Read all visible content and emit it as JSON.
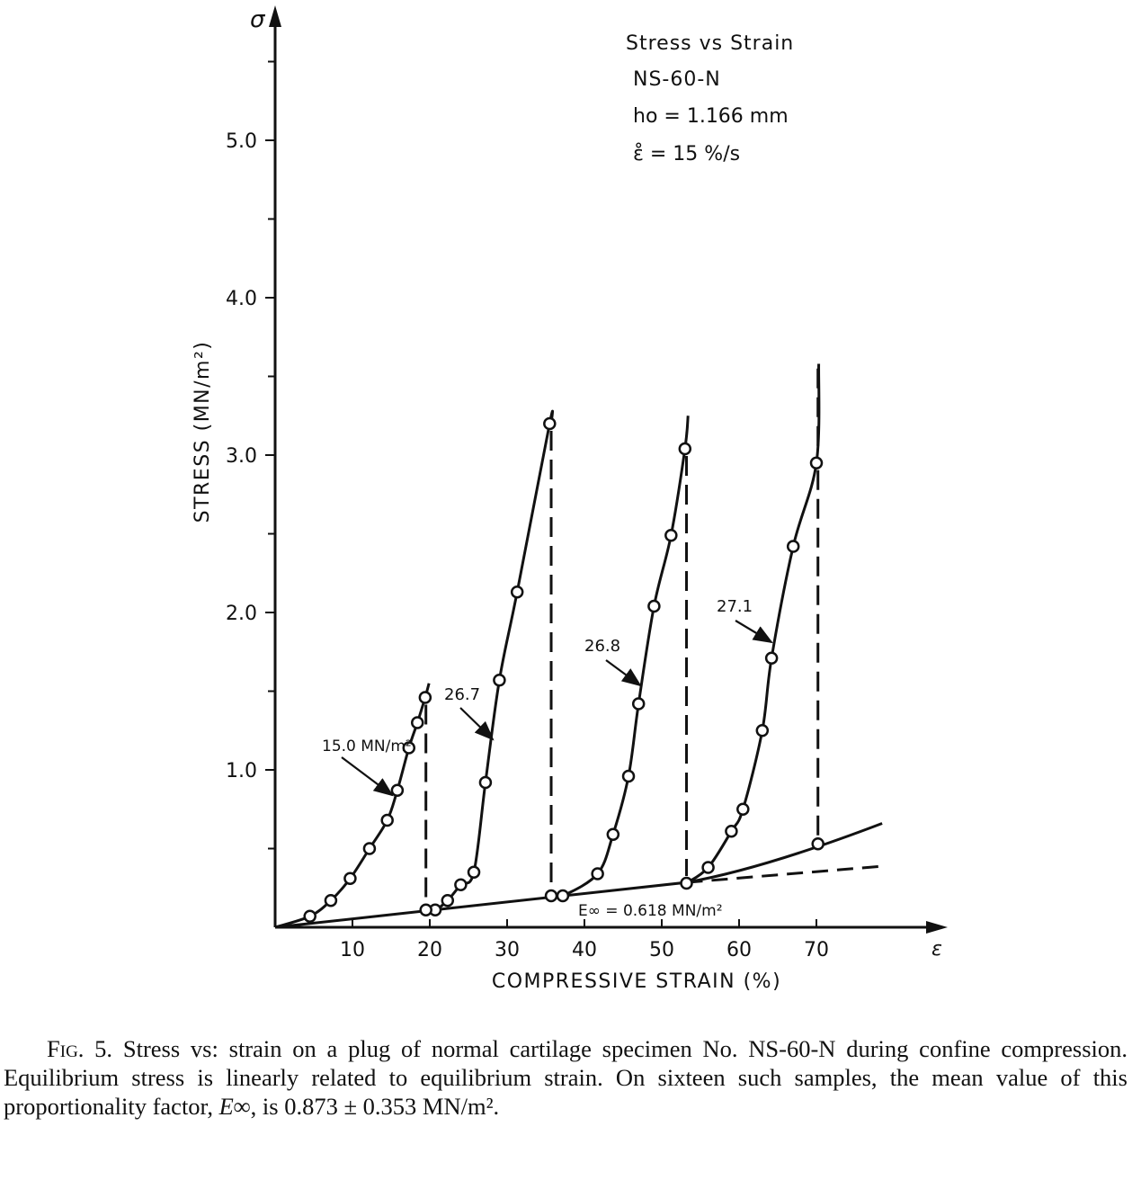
{
  "chart_data": {
    "type": "line",
    "title_block": {
      "line1": "Stress vs Strain",
      "line2": "NS-60-N",
      "line3": "ho = 1.166 mm",
      "line4": "ε̊ = 15 %/s"
    },
    "xlabel": "COMPRESSIVE STRAIN (%)",
    "ylabel": "STRESS (MN/m²)",
    "x_axis_symbol": "ε",
    "y_axis_symbol": "σ",
    "xlim": [
      0,
      85
    ],
    "ylim": [
      0,
      5.8
    ],
    "x_ticks": [
      10,
      20,
      30,
      40,
      50,
      60,
      70
    ],
    "y_ticks": [
      1.0,
      2.0,
      3.0,
      4.0,
      5.0
    ],
    "x_tick_labels": [
      "10",
      "20",
      "30",
      "40",
      "50",
      "60",
      "70"
    ],
    "y_tick_labels": [
      "1.0",
      "2.0",
      "3.0",
      "4.0",
      "5.0"
    ],
    "series": [
      {
        "points": [
          [
            4.5,
            0.07
          ],
          [
            7.2,
            0.17
          ],
          [
            9.7,
            0.31
          ],
          [
            12.2,
            0.5
          ],
          [
            14.5,
            0.68
          ],
          [
            15.8,
            0.87
          ],
          [
            17.3,
            1.14
          ],
          [
            18.4,
            1.3
          ],
          [
            19.4,
            1.46
          ]
        ]
      },
      {
        "points": [
          [
            20.7,
            0.11
          ],
          [
            22.3,
            0.17
          ],
          [
            24.0,
            0.27
          ],
          [
            25.7,
            0.35
          ],
          [
            27.2,
            0.92
          ],
          [
            29.0,
            1.57
          ],
          [
            31.3,
            2.13
          ],
          [
            35.5,
            3.2
          ]
        ]
      },
      {
        "points": [
          [
            37.2,
            0.2
          ],
          [
            41.7,
            0.34
          ],
          [
            43.7,
            0.59
          ],
          [
            45.7,
            0.96
          ],
          [
            47.0,
            1.42
          ],
          [
            49.0,
            2.04
          ],
          [
            51.2,
            2.49
          ],
          [
            53.0,
            3.04
          ]
        ]
      },
      {
        "points": [
          [
            56.0,
            0.38
          ],
          [
            59.0,
            0.61
          ],
          [
            60.5,
            0.75
          ],
          [
            63.0,
            1.25
          ],
          [
            64.2,
            1.71
          ],
          [
            67.0,
            2.42
          ],
          [
            70.0,
            2.95
          ]
        ]
      }
    ],
    "equilibrium_points": [
      [
        19.5,
        0.11
      ],
      [
        35.7,
        0.2
      ],
      [
        53.2,
        0.28
      ],
      [
        70.2,
        0.53
      ]
    ],
    "equilibrium_fit_label": "E∞ = 0.618 MN/m²",
    "step_drops": [
      [
        19.5,
        1.46,
        0.11
      ],
      [
        35.7,
        3.2,
        0.2
      ],
      [
        53.2,
        3.04,
        0.28
      ],
      [
        70.2,
        2.95,
        0.53
      ]
    ],
    "annotations": [
      {
        "text": "15.0 MN/m²"
      },
      {
        "text": "26.7"
      },
      {
        "text": "26.8"
      },
      {
        "text": "27.1"
      }
    ]
  },
  "caption": {
    "label": "Fig. 5.",
    "text_before": "Stress vs: strain on a plug of normal cartilage specimen No. NS-60-N during confine compression. Equilibrium stress is linearly related to equilibrium strain. On sixteen such samples, the mean value of this proportionality factor, ",
    "symbol": "E∞",
    "text_after": ", is 0.873 ± 0.353 MN/m²."
  }
}
